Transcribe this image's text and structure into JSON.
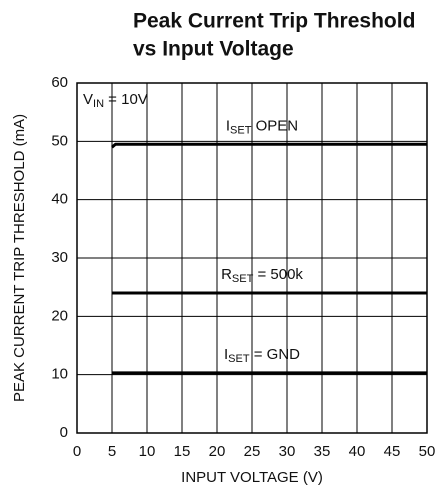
{
  "chart_data": {
    "type": "line",
    "title": [
      "Peak Current Trip Threshold",
      "vs Input Voltage"
    ],
    "x_label": "INPUT VOLTAGE (V)",
    "y_label": "PEAK CURRENT TRIP THRESHOLD (mA)",
    "annotation": [
      "V",
      "IN",
      " = 10V"
    ],
    "x": [
      5,
      5.5,
      50
    ],
    "series": [
      {
        "name": [
          "I",
          "SET",
          " OPEN"
        ],
        "color": "#000000",
        "values": [
          49.0,
          49.5,
          49.5
        ]
      },
      {
        "name": [
          "R",
          "SET",
          " = 500k"
        ],
        "color": "#000000",
        "values": [
          24.0,
          24.0,
          24.0
        ]
      },
      {
        "name": [
          "I",
          "SET",
          " = GND"
        ],
        "color": "#000000",
        "values": [
          10.3,
          10.3,
          10.3
        ]
      }
    ],
    "xlim": [
      0,
      50
    ],
    "xticks": [
      0,
      5,
      10,
      15,
      20,
      25,
      30,
      35,
      40,
      45,
      50
    ],
    "ylim": [
      0,
      60
    ],
    "yticks": [
      0,
      10,
      20,
      30,
      40,
      50,
      60
    ],
    "grid": true
  }
}
